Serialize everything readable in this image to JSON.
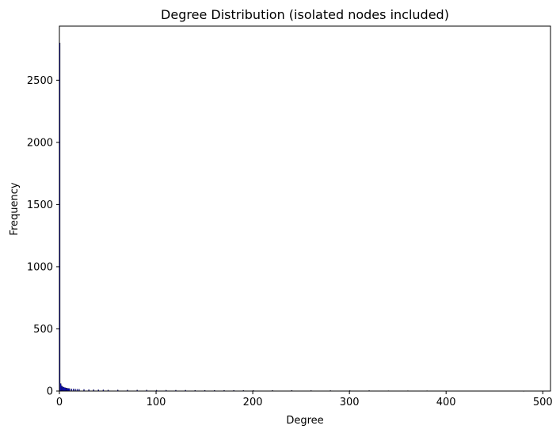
{
  "chart_data": {
    "type": "bar",
    "title": "Degree Distribution (isolated nodes included)",
    "xlabel": "Degree",
    "ylabel": "Frequency",
    "xlim": [
      0,
      508
    ],
    "ylim": [
      0,
      2935
    ],
    "xticks": [
      0,
      100,
      200,
      300,
      400,
      500
    ],
    "yticks": [
      0,
      500,
      1000,
      1500,
      2000,
      2500
    ],
    "bar_color": "#0000ff",
    "bar_edge_color": "#000000",
    "grid": false,
    "series": [
      {
        "x": [
          0,
          1,
          2,
          3,
          4,
          5,
          6,
          7,
          8,
          9,
          10,
          12,
          14,
          16,
          18,
          20,
          25,
          30,
          35,
          40,
          45,
          50,
          60,
          70,
          80,
          90,
          100,
          110,
          120,
          130,
          140,
          150,
          160,
          170,
          180,
          190,
          200,
          220,
          240,
          260,
          280,
          300,
          320,
          340,
          360,
          380,
          400,
          420,
          440,
          460,
          480
        ],
        "values": [
          2800,
          60,
          42,
          35,
          30,
          28,
          26,
          24,
          22,
          21,
          20,
          18,
          17,
          16,
          15,
          14,
          13,
          12,
          11,
          10,
          10,
          9,
          9,
          8,
          8,
          8,
          7,
          7,
          7,
          7,
          6,
          6,
          6,
          6,
          6,
          5,
          5,
          5,
          5,
          4,
          4,
          4,
          4,
          3,
          3,
          3,
          2,
          2,
          2,
          2,
          1
        ]
      }
    ]
  }
}
